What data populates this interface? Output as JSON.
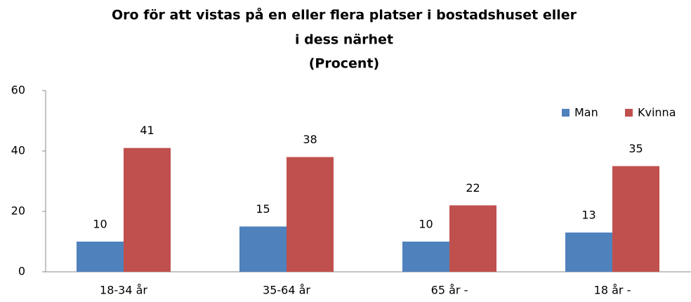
{
  "chart_data": {
    "type": "bar",
    "title": [
      "Oro för att vistas på en eller flera platser i bostadshuset eller",
      "i dess närhet"
    ],
    "subtitle": "(Procent)",
    "categories": [
      "18-34 år",
      "35-64 år",
      "65 år -",
      "18 år -"
    ],
    "series": [
      {
        "name": "Man",
        "color": "#4f81bd",
        "values": [
          10,
          15,
          10,
          13
        ]
      },
      {
        "name": "Kvinna",
        "color": "#c0504d",
        "values": [
          41,
          38,
          22,
          35
        ]
      }
    ],
    "ylim": [
      0,
      60
    ],
    "yticks": [
      0,
      20,
      40,
      60
    ],
    "grid": false,
    "legend": "upper right"
  }
}
